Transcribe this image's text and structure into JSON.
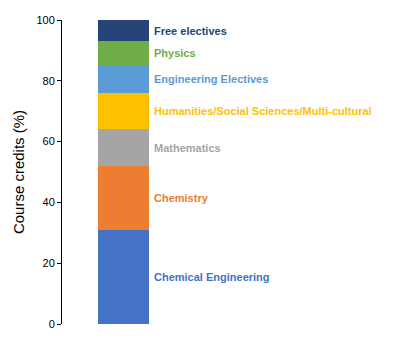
{
  "chart_data": {
    "type": "bar",
    "stacked": true,
    "ylabel": "Course credits (%)",
    "categories": [
      null
    ],
    "series": [
      {
        "name": "Chemical Engineering",
        "color": "#4472c4",
        "values": [
          31
        ]
      },
      {
        "name": "Chemistry",
        "color": "#ed7d31",
        "values": [
          21
        ]
      },
      {
        "name": "Mathematics",
        "color": "#a5a5a5",
        "values": [
          12
        ]
      },
      {
        "name": "Humanities/Social Sciences/Multi-cultural",
        "color": "#ffc000",
        "values": [
          12
        ]
      },
      {
        "name": "Engineering Electives",
        "color": "#5b9bd5",
        "values": [
          9
        ]
      },
      {
        "name": "Physics",
        "color": "#70ad47",
        "values": [
          8
        ]
      },
      {
        "name": "Free electives",
        "color": "#264478",
        "values": [
          7
        ]
      }
    ],
    "ylim": [
      0,
      100
    ],
    "yticks": [
      0,
      20,
      40,
      60,
      80,
      100
    ],
    "grid": false
  }
}
